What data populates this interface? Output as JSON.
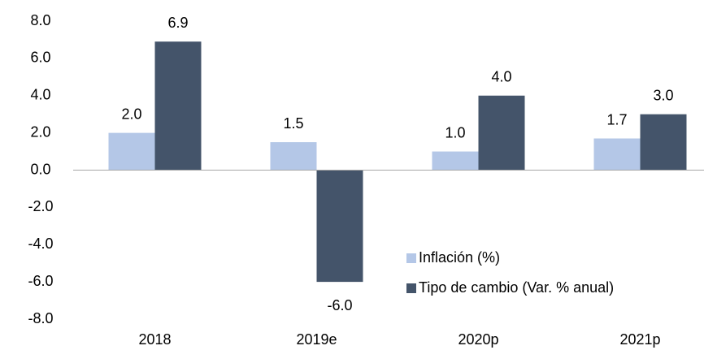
{
  "chart_data": {
    "type": "bar",
    "categories": [
      "2018",
      "2019e",
      "2020p",
      "2021p"
    ],
    "series": [
      {
        "name": "Inflación (%)",
        "color": "#b4c7e7",
        "values": [
          2.0,
          1.5,
          1.0,
          1.7
        ],
        "value_labels": [
          "2.0",
          "1.5",
          "1.0",
          "1.7"
        ]
      },
      {
        "name": "Tipo de cambio  (Var. % anual)",
        "color": "#44546a",
        "values": [
          6.9,
          -6.0,
          4.0,
          3.0
        ],
        "value_labels": [
          "6.9",
          "-6.0",
          "4.0",
          "3.0"
        ]
      }
    ],
    "ylim": [
      -8,
      8
    ],
    "yticks": [
      {
        "value": -8,
        "label": "-8.0"
      },
      {
        "value": -6,
        "label": "-6.0"
      },
      {
        "value": -4,
        "label": "-4.0"
      },
      {
        "value": -2,
        "label": "-2.0"
      },
      {
        "value": 0,
        "label": "0.0"
      },
      {
        "value": 2,
        "label": "2.0"
      },
      {
        "value": 4,
        "label": "4.0"
      },
      {
        "value": 6,
        "label": "6.0"
      },
      {
        "value": 8,
        "label": "8.0"
      }
    ],
    "grid": false,
    "legend": "lower right"
  }
}
